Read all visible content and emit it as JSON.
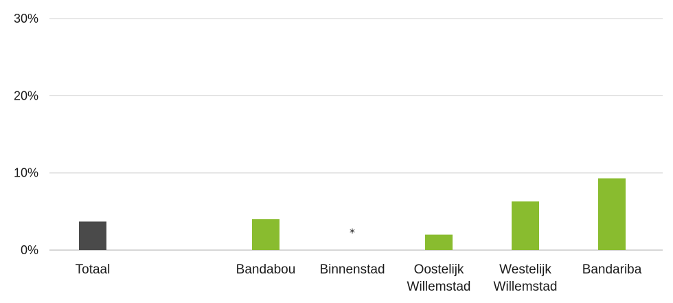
{
  "chart_data": {
    "type": "bar",
    "categories": [
      [
        "Totaal"
      ],
      [
        ""
      ],
      [
        "Bandabou"
      ],
      [
        "Binnenstad"
      ],
      [
        "Oostelijk",
        "Willemstad"
      ],
      [
        "Westelijk",
        "Willemstad"
      ],
      [
        "Bandariba"
      ]
    ],
    "values": [
      3.7,
      null,
      4.0,
      null,
      2.0,
      6.3,
      9.3
    ],
    "bar_colors": [
      "#4a4a4a",
      "#89bc2f",
      "#89bc2f",
      "#89bc2f",
      "#89bc2f",
      "#89bc2f",
      "#89bc2f"
    ],
    "annotations": [
      {
        "category_index": 3,
        "text": "*",
        "y": 2.5
      }
    ],
    "ylim": [
      0,
      30
    ],
    "yticks": [
      0,
      10,
      20,
      30
    ],
    "ytick_labels": [
      "0%",
      "10%",
      "20%",
      "30%"
    ],
    "grid": true,
    "title": "",
    "xlabel": "",
    "ylabel": ""
  }
}
